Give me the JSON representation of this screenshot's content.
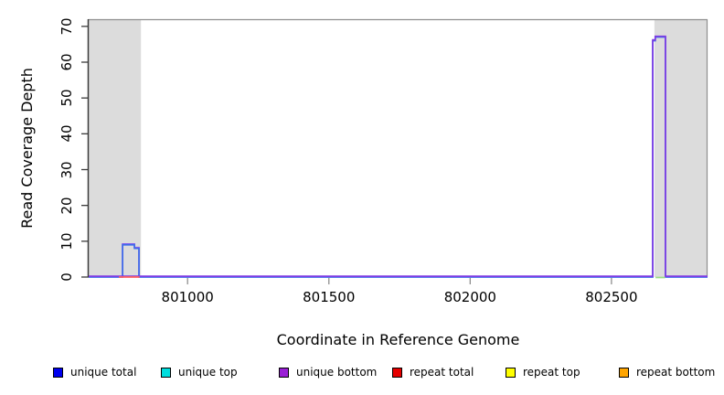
{
  "chart_data": {
    "type": "line",
    "title": "",
    "xlabel": "Coordinate in Reference Genome",
    "ylabel": "Read Coverage Depth",
    "xlim": [
      800650,
      802840
    ],
    "ylim": [
      0,
      72
    ],
    "x_ticks": [
      801000,
      801500,
      802000,
      802500
    ],
    "y_ticks": [
      0,
      10,
      20,
      30,
      40,
      50,
      60,
      70
    ],
    "grid": false,
    "plot_bg": "#ffffff",
    "shaded_regions": [
      {
        "x0": 800650,
        "x1": 800835,
        "color": "#dcdcdc"
      },
      {
        "x0": 802652,
        "x1": 802840,
        "color": "#dcdcdc"
      }
    ],
    "series": [
      {
        "name": "unique total",
        "color": "#0000ee",
        "baseline_depth": 0,
        "segments": [
          {
            "x0": 800770,
            "x1": 800812,
            "depth": 9
          },
          {
            "x0": 800812,
            "x1": 800828,
            "depth": 8
          },
          {
            "x0": 802646,
            "x1": 802655,
            "depth": 66
          },
          {
            "x0": 802655,
            "x1": 802691,
            "depth": 67
          }
        ]
      },
      {
        "name": "unique top",
        "color": "#00dede",
        "baseline_depth": 0,
        "segments": []
      },
      {
        "name": "unique bottom",
        "color": "#9a1fd6",
        "baseline_depth": 0,
        "segments": [
          {
            "x0": 800770,
            "x1": 800812,
            "depth": 9
          },
          {
            "x0": 800812,
            "x1": 800828,
            "depth": 8
          },
          {
            "x0": 802646,
            "x1": 802655,
            "depth": 66
          },
          {
            "x0": 802655,
            "x1": 802691,
            "depth": 67
          }
        ]
      },
      {
        "name": "repeat total",
        "color": "#e60000",
        "baseline_depth": 0,
        "segments": [
          {
            "x0": 800757,
            "x1": 800830,
            "depth": 0
          }
        ]
      },
      {
        "name": "repeat top",
        "color": "#ffff00",
        "baseline_depth": 0,
        "segments": []
      },
      {
        "name": "repeat bottom",
        "color": "#ffa500",
        "baseline_depth": 0,
        "segments": []
      }
    ],
    "render_paths": [
      {
        "name": "unique-bottom-small-peak",
        "color": "#8a5cf0",
        "dy": -0.9,
        "points": [
          [
            800770,
            0
          ],
          [
            800770,
            9
          ],
          [
            800812,
            9
          ],
          [
            800812,
            8
          ],
          [
            800828,
            8
          ],
          [
            800828,
            0
          ]
        ]
      },
      {
        "name": "unique-total-line",
        "color": "#3f6ce8",
        "dy": 0,
        "points": [
          [
            800650,
            0
          ],
          [
            800770,
            0
          ],
          [
            800770,
            9
          ],
          [
            800812,
            9
          ],
          [
            800812,
            8
          ],
          [
            800828,
            8
          ],
          [
            800828,
            0
          ],
          [
            802646,
            0
          ],
          [
            802646,
            66
          ],
          [
            802655,
            66
          ],
          [
            802655,
            67
          ],
          [
            802691,
            67
          ],
          [
            802691,
            0
          ],
          [
            802840,
            0
          ]
        ]
      },
      {
        "name": "unique-bottom-line",
        "color": "#7e3be4",
        "dy": -0.9,
        "points": [
          [
            800650,
            0
          ],
          [
            802646,
            0
          ],
          [
            802646,
            66
          ],
          [
            802655,
            66
          ],
          [
            802655,
            67
          ],
          [
            802691,
            67
          ],
          [
            802691,
            0
          ],
          [
            802840,
            0
          ]
        ]
      },
      {
        "name": "repeat-total-baseline-segment",
        "color": "#ff6060",
        "dy": 0,
        "points": [
          [
            800757,
            0
          ],
          [
            800830,
            0
          ]
        ]
      },
      {
        "name": "overlap-baseline-green-segment",
        "color": "#98dc82",
        "dy": 0.5,
        "points": [
          [
            802656,
            0
          ],
          [
            802690,
            0
          ]
        ]
      }
    ],
    "legend": {
      "position": "bottom",
      "items": [
        {
          "label": "unique total",
          "color": "#0000ee"
        },
        {
          "label": "unique top",
          "color": "#00dede"
        },
        {
          "label": "unique bottom",
          "color": "#9a1fd6"
        },
        {
          "label": "repeat total",
          "color": "#e60000"
        },
        {
          "label": "repeat top",
          "color": "#ffff00"
        },
        {
          "label": "repeat bottom",
          "color": "#ffa500"
        }
      ]
    },
    "axis_colors": {
      "left_axis": "#3a3a3a",
      "box_border": "#8f8f8f",
      "x_tick": "#8f8f8f"
    }
  }
}
